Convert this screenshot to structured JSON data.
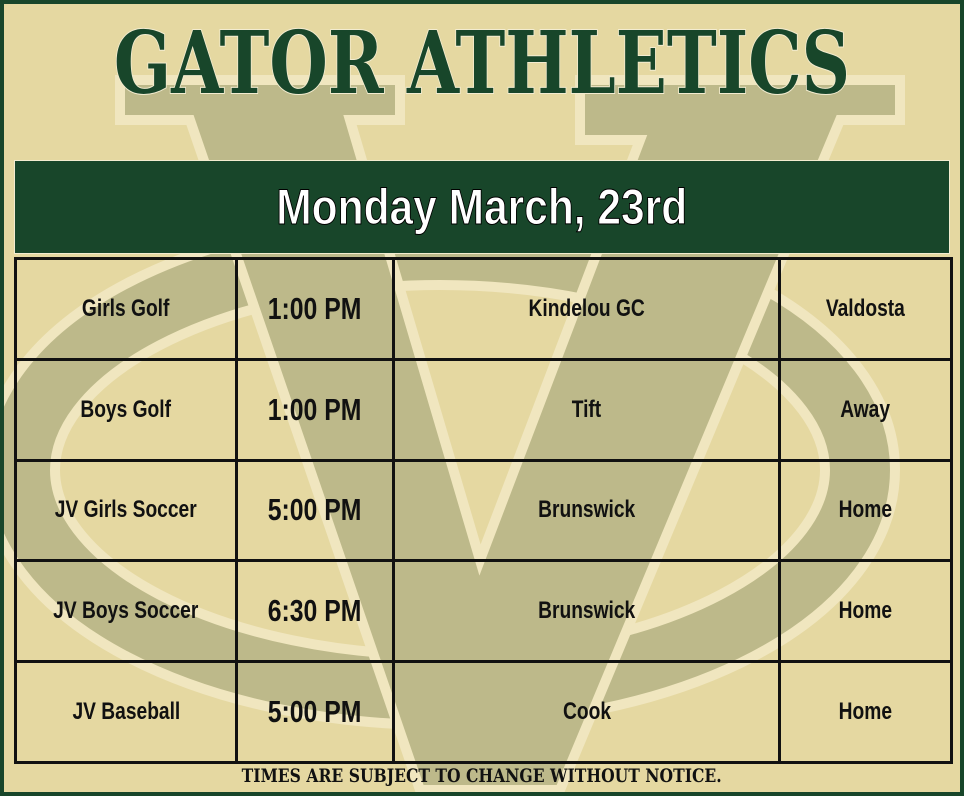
{
  "title": "GATOR ATHLETICS",
  "date_banner": "Monday March, 23rd",
  "colors": {
    "green": "#18462a",
    "background": "#e5d8a1",
    "watermark": "#bdb98a"
  },
  "schedule": [
    {
      "sport": "Girls Golf",
      "time": "1:00 PM",
      "opponent": "Kindelou GC",
      "location": "Valdosta"
    },
    {
      "sport": "Boys Golf",
      "time": "1:00 PM",
      "opponent": "Tift",
      "location": "Away"
    },
    {
      "sport": "JV Girls Soccer",
      "time": "5:00 PM",
      "opponent": "Brunswick",
      "location": "Home"
    },
    {
      "sport": "JV Boys Soccer",
      "time": "6:30 PM",
      "opponent": "Brunswick",
      "location": "Home"
    },
    {
      "sport": "JV Baseball",
      "time": "5:00 PM",
      "opponent": "Cook",
      "location": "Home"
    }
  ],
  "footer_note": "TIMES ARE SUBJECT TO CHANGE WITHOUT NOTICE."
}
